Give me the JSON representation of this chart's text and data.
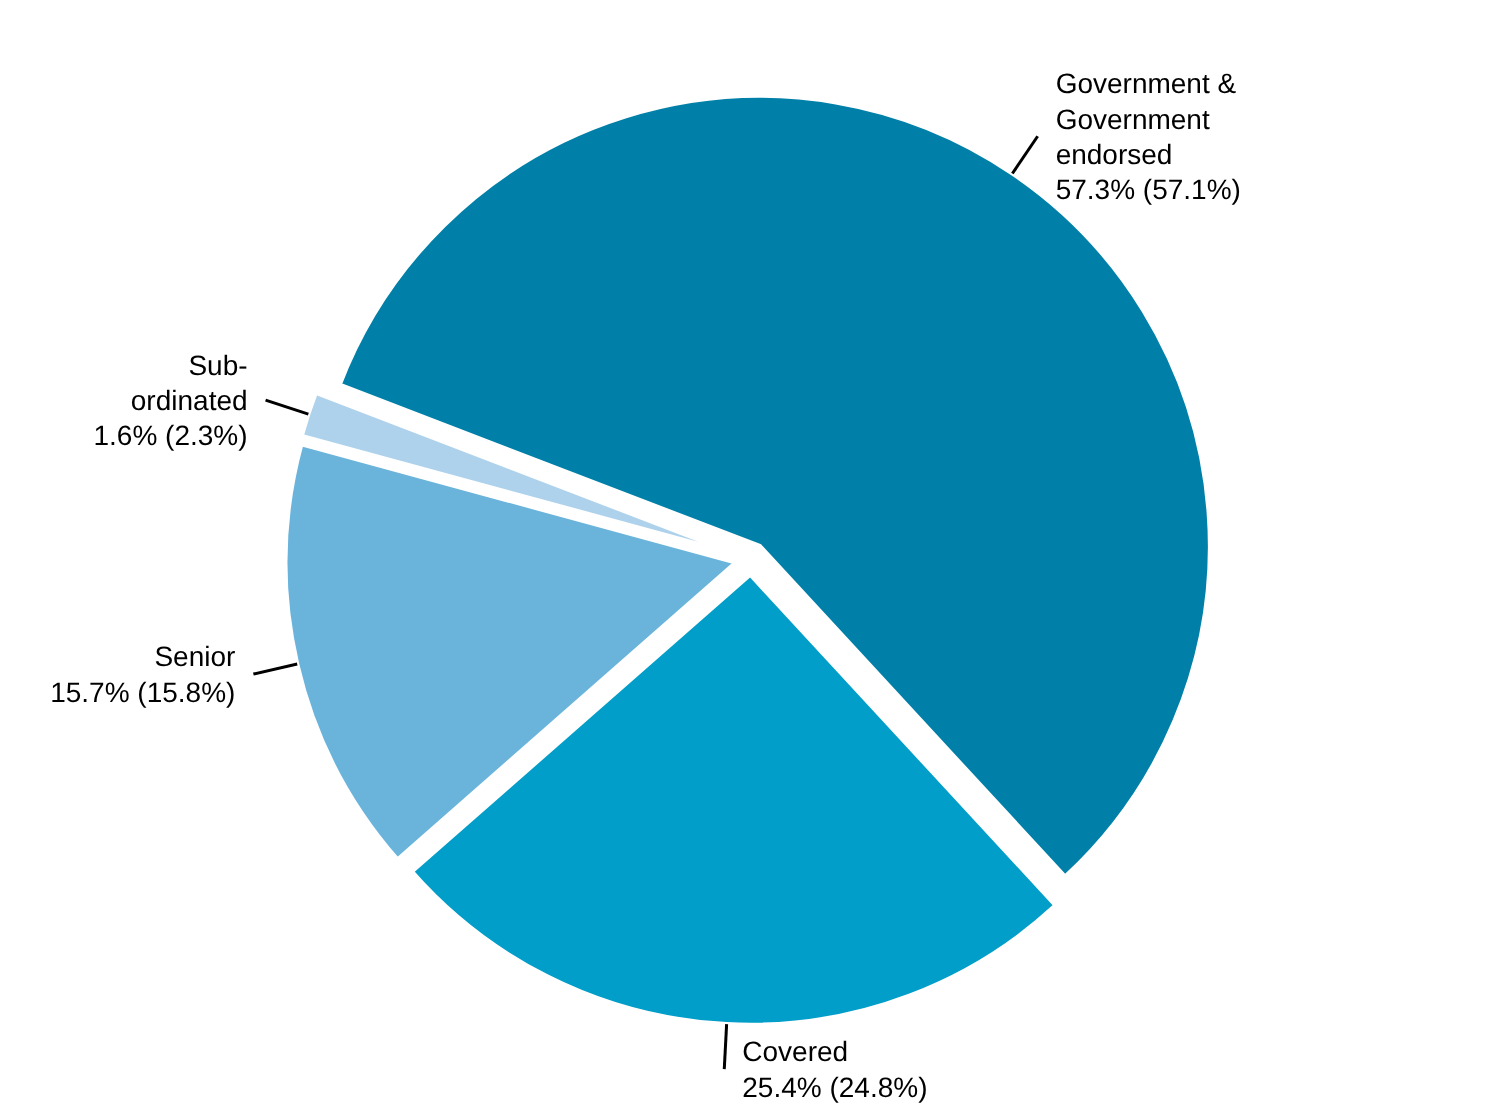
{
  "chart_data": {
    "type": "pie",
    "categories": [
      "Government & Government endorsed",
      "Covered",
      "Senior",
      "Sub-ordinated"
    ],
    "values": [
      57.3,
      25.4,
      15.7,
      1.6
    ],
    "colors": [
      "#0080a8",
      "#009ec8",
      "#6ab4dc",
      "#aed2ec"
    ],
    "value_labels": [
      "57.3% (57.1%)",
      "25.4% (24.8%)",
      "15.7% (15.8%)",
      "1.6% (2.3%)"
    ]
  }
}
